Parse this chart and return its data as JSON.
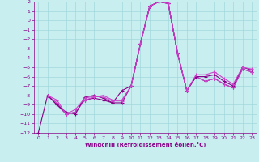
{
  "xlabel": "Windchill (Refroidissement éolien,°C)",
  "xlim": [
    -0.5,
    23.5
  ],
  "ylim": [
    -12,
    2
  ],
  "yticks": [
    2,
    1,
    0,
    -1,
    -2,
    -3,
    -4,
    -5,
    -6,
    -7,
    -8,
    -9,
    -10,
    -11,
    -12
  ],
  "xticks": [
    0,
    1,
    2,
    3,
    4,
    5,
    6,
    7,
    8,
    9,
    10,
    11,
    12,
    13,
    14,
    15,
    16,
    17,
    18,
    19,
    20,
    21,
    22,
    23
  ],
  "background_color": "#c8eef0",
  "grid_color": "#a0d8dc",
  "line_color": "#880088",
  "line_color2": "#cc44cc",
  "lines": [
    {
      "x": [
        0,
        1,
        2,
        3,
        4,
        5,
        6,
        7,
        8,
        9,
        10,
        11,
        12,
        13,
        14,
        15,
        16,
        17,
        18,
        19,
        20,
        21,
        22,
        23
      ],
      "y": [
        -12,
        -8,
        -9,
        -10,
        -9.8,
        -8.5,
        -8.3,
        -8.5,
        -8.8,
        -7.5,
        -7.0,
        -2.5,
        1.5,
        2.0,
        1.8,
        -3.5,
        -7.5,
        -6.0,
        -6.5,
        -6.2,
        -6.8,
        -7.2,
        -5.2,
        -5.5
      ]
    },
    {
      "x": [
        1,
        2,
        3,
        4,
        5,
        6,
        7,
        8,
        9,
        10,
        11,
        12,
        13,
        14,
        15,
        16,
        17,
        18,
        19,
        20,
        21,
        22,
        23
      ],
      "y": [
        -8,
        -8.8,
        -10,
        -9.8,
        -8.5,
        -8.2,
        -8.0,
        -8.5,
        -8.5,
        -7.0,
        -2.5,
        1.5,
        2.0,
        1.8,
        -3.5,
        -7.5,
        -6.0,
        -6.5,
        -6.2,
        -6.8,
        -7.2,
        -5.2,
        -5.5
      ]
    },
    {
      "x": [
        1,
        2,
        3,
        4,
        5,
        6,
        7,
        8,
        9,
        10,
        11,
        12,
        13,
        14,
        15,
        16,
        17,
        18,
        19,
        20,
        21,
        22,
        23
      ],
      "y": [
        -8,
        -9.0,
        -9.8,
        -10,
        -8.2,
        -8.0,
        -8.3,
        -8.8,
        -8.8,
        -7.0,
        -2.5,
        1.5,
        2.0,
        1.8,
        -3.5,
        -7.5,
        -6.0,
        -6.0,
        -5.8,
        -6.5,
        -7.0,
        -5.0,
        -5.3
      ]
    },
    {
      "x": [
        1,
        2,
        3,
        4,
        5,
        6,
        7,
        8,
        9,
        10,
        11,
        12,
        13,
        14,
        15,
        16,
        17,
        18,
        19,
        20,
        21,
        22,
        23
      ],
      "y": [
        -8,
        -8.5,
        -10,
        -9.5,
        -8.3,
        -8.1,
        -8.2,
        -8.6,
        -8.6,
        -7.0,
        -2.5,
        1.5,
        2.0,
        1.8,
        -3.5,
        -7.5,
        -5.8,
        -5.8,
        -5.5,
        -6.2,
        -6.8,
        -5.0,
        -5.2
      ]
    }
  ]
}
